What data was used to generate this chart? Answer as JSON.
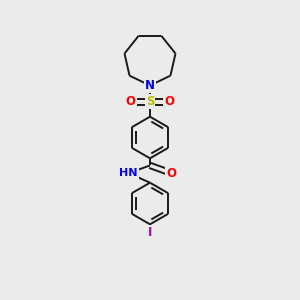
{
  "bg_color": "#ebebeb",
  "bond_color": "#1a1a1a",
  "bond_width": 1.4,
  "atom_colors": {
    "N": "#0000ee",
    "O": "#ff0000",
    "S": "#bbbb00",
    "I": "#aa00aa",
    "H": "#555555",
    "C": "#1a1a1a"
  },
  "font_size": 8.5,
  "fig_size": [
    3.0,
    3.0
  ],
  "dpi": 100
}
